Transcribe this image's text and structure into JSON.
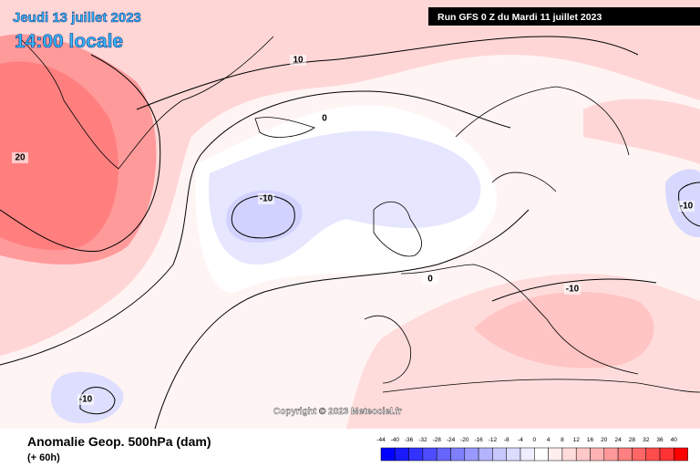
{
  "header": {
    "date": "Jeudi 13 juillet 2023",
    "time": "14:00 locale",
    "run": "Run GFS 0 Z du Mardi 11 juillet 2023"
  },
  "map": {
    "contour_labels": [
      "10",
      "0",
      "20",
      "-10",
      "0",
      "-10",
      "-10",
      "-10"
    ],
    "copyright": "Copyright © 2023 Meteociel.fr"
  },
  "footer": {
    "title": "Anomalie Geop. 500hPa (dam)",
    "lead": "(+ 60h)"
  },
  "legend": {
    "labels": [
      -44,
      -40,
      -36,
      -32,
      -28,
      -24,
      -20,
      -16,
      -12,
      -8,
      -4,
      0,
      4,
      8,
      12,
      16,
      20,
      24,
      28,
      32,
      36,
      40
    ],
    "colors": [
      "#0000ff",
      "#1a1aff",
      "#3333ff",
      "#4d4dff",
      "#6666ff",
      "#8080ff",
      "#9999ff",
      "#b3b3ff",
      "#c8c8ff",
      "#dcdcff",
      "#eeeeff",
      "#ffffff",
      "#ffeeee",
      "#ffdcdc",
      "#ffc8c8",
      "#ffb3b3",
      "#ff9999",
      "#ff8080",
      "#ff6666",
      "#ff4d4d",
      "#ff3333",
      "#ff0000"
    ]
  }
}
